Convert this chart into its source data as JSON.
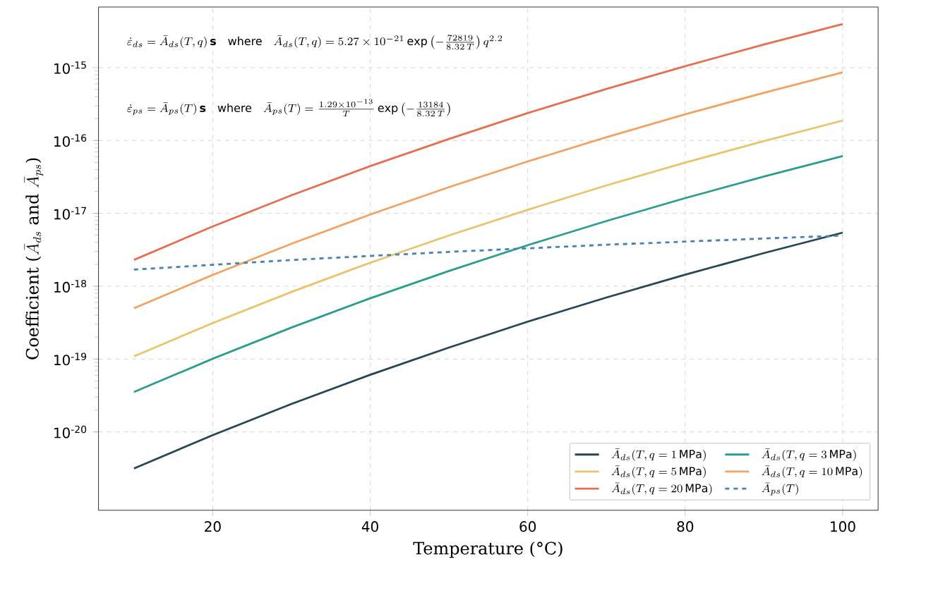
{
  "chart_data": {
    "type": "line",
    "xlabel": "Temperature (°C)",
    "ylabel": "\\text{Coefficient (}\\bar{A}_{ds}\\text{ and }\\bar{A}_{ps}\\text{)}",
    "x": [
      10,
      20,
      30,
      40,
      50,
      60,
      70,
      80,
      90,
      100
    ],
    "series": [
      {
        "name": "\\bar{A}_{ds}(T, q = 1\\,\\mathrm{MPa})",
        "color": "#264653",
        "values": [
          3.15e-21,
          9.04e-21,
          2.42e-20,
          6.08e-20,
          1.44e-19,
          3.26e-19,
          7e-19,
          1.44e-18,
          2.85e-18,
          5.44e-18
        ]
      },
      {
        "name": "\\bar{A}_{ds}(T, q = 3\\,\\mathrm{MPa})",
        "color": "#2a9d8f",
        "values": [
          3.53e-20,
          1.01e-19,
          2.71e-19,
          6.82e-19,
          1.62e-18,
          3.66e-18,
          7.85e-18,
          1.62e-17,
          3.2e-17,
          6.11e-17
        ]
      },
      {
        "name": "\\bar{A}_{ds}(T, q = 5\\,\\mathrm{MPa})",
        "color": "#e9c46a",
        "values": [
          1.09e-19,
          3.12e-19,
          8.34e-19,
          2.1e-18,
          4.98e-18,
          1.12e-17,
          2.42e-17,
          4.98e-17,
          9.84e-17,
          1.88e-16
        ]
      },
      {
        "name": "\\bar{A}_{ds}(T, q = 10\\,\\mathrm{MPa})",
        "color": "#f4a261",
        "values": [
          4.99e-19,
          1.43e-18,
          3.83e-18,
          9.64e-18,
          2.29e-17,
          5.16e-17,
          1.11e-16,
          2.29e-16,
          4.52e-16,
          8.63e-16
        ]
      },
      {
        "name": "\\bar{A}_{ds}(T, q = 20\\,\\mathrm{MPa})",
        "color": "#e76f51",
        "values": [
          2.3e-18,
          6.61e-18,
          1.77e-17,
          4.45e-17,
          1.05e-16,
          2.38e-16,
          5.12e-16,
          1.05e-15,
          2.08e-15,
          3.98e-15
        ]
      },
      {
        "name": "\\bar{A}_{ps}(T)",
        "color": "#4682b4",
        "line_style": "dashed",
        "x": [
          10,
          30,
          50,
          70,
          90,
          100
        ],
        "values": [
          1.69e-18,
          2.29e-18,
          2.96e-18,
          3.71e-18,
          4.52e-18,
          4.95e-18
        ]
      }
    ],
    "annotations": [
      "\\dot{\\varepsilon}_{ds} = \\bar{A}_{ds}(T,q)\\,\\mathbf{s} \\quad \\text{where} \\quad \\bar{A}_{ds}(T,q) = 5.27\\times 10^{-21}\\exp\\left(-\\frac{72819}{8.32\\,T}\\right)q^{2.2}",
      "\\dot{\\varepsilon}_{ps} = \\bar{A}_{ps}(T)\\,\\mathbf{s} \\quad \\text{where} \\quad \\bar{A}_{ps}(T) = \\frac{1.29\\times 10^{-13}}{T}\\exp\\left(-\\frac{13184}{8.32\\,T}\\right)"
    ],
    "log": "y",
    "xlim": [
      5.5,
      104.5
    ],
    "ylim": [
      8.4e-22,
      6.8e-15
    ],
    "xticks": [
      20,
      40,
      60,
      80,
      100
    ],
    "yticks": [
      {
        "value": 1e-20,
        "label": "10$^{-20}$"
      },
      {
        "value": 1e-19,
        "label": "10$^{-19}$"
      },
      {
        "value": 1e-18,
        "label": "10$^{-18}$"
      },
      {
        "value": 1e-17,
        "label": "10$^{-17}$"
      },
      {
        "value": 1e-16,
        "label": "10$^{-16}$"
      },
      {
        "value": 1e-15,
        "label": "10$^{-15}$"
      }
    ],
    "grid": true,
    "legend": "bottom right"
  }
}
